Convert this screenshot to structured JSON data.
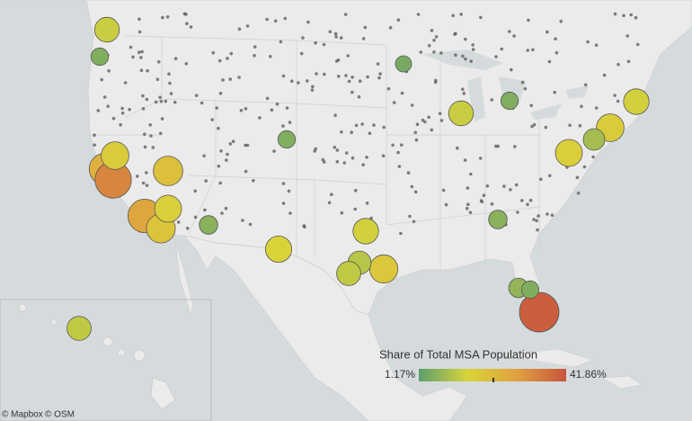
{
  "map": {
    "legend": {
      "title": "Share of Total MSA Population",
      "min": {
        "value": 1.17,
        "label": "1.17%"
      },
      "max": {
        "value": 41.86,
        "label": "41.86%"
      },
      "colors": [
        "#5e9e6e",
        "#d9d43a",
        "#e0a040",
        "#c8553d"
      ]
    },
    "bubbles": {
      "values": [
        13,
        5,
        24,
        33,
        17,
        27,
        19,
        16,
        20,
        6,
        5,
        14,
        18,
        11,
        12,
        13,
        5,
        4,
        6,
        17,
        14,
        9,
        16,
        40,
        7,
        5,
        12,
        15
      ]
    },
    "credits": [
      "© Mapbox",
      "© OSM"
    ]
  }
}
